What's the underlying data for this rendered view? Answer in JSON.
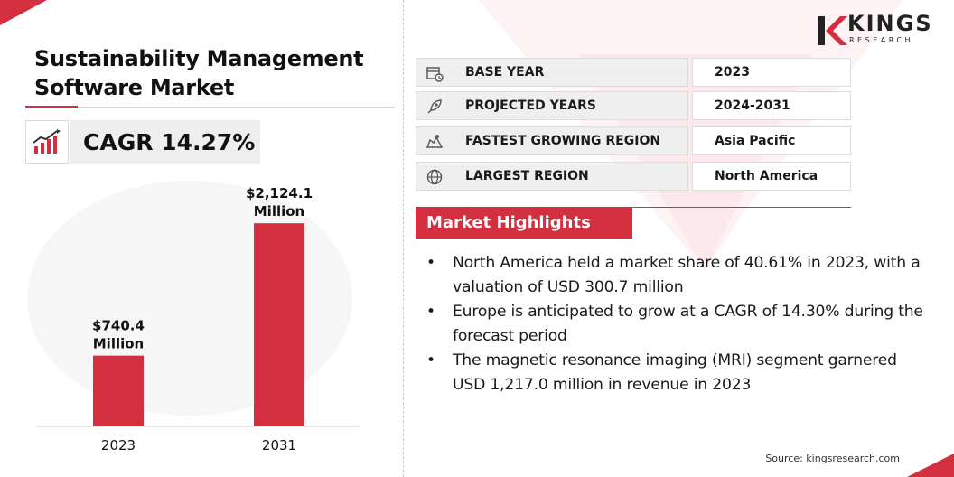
{
  "title": "Sustainability Management Software Market",
  "cagr": "CAGR 14.27%",
  "brand": {
    "name": "KINGS",
    "sub": "RESEARCH",
    "accent": "#d32f3f"
  },
  "info": [
    {
      "icon": "calendar-icon",
      "label": "BASE YEAR",
      "value": "2023"
    },
    {
      "icon": "rocket-icon",
      "label": "PROJECTED YEARS",
      "value": "2024-2031"
    },
    {
      "icon": "region-map-icon",
      "label": "FASTEST GROWING REGION",
      "value": "Asia Pacific"
    },
    {
      "icon": "globe-icon",
      "label": "LARGEST REGION",
      "value": "North America"
    }
  ],
  "highlights": {
    "heading": "Market Highlights",
    "items": [
      "North America held a market share of 40.61% in 2023, with a valuation of USD 300.7 million",
      "Europe is anticipated to grow at a CAGR of 14.30% during the forecast period",
      "The magnetic resonance imaging (MRI) segment garnered USD 1,217.0 million in revenue in 2023"
    ]
  },
  "source": "Source: kingsresearch.com",
  "chart_data": {
    "type": "bar",
    "categories": [
      "2023",
      "2031"
    ],
    "values": [
      740.4,
      2124.1
    ],
    "data_labels": [
      [
        "$740.4",
        "Million"
      ],
      [
        "$2,124.1",
        "Million"
      ]
    ],
    "ylim": [
      0,
      2400
    ],
    "grid": false,
    "bar_color": "#d32f3f"
  }
}
